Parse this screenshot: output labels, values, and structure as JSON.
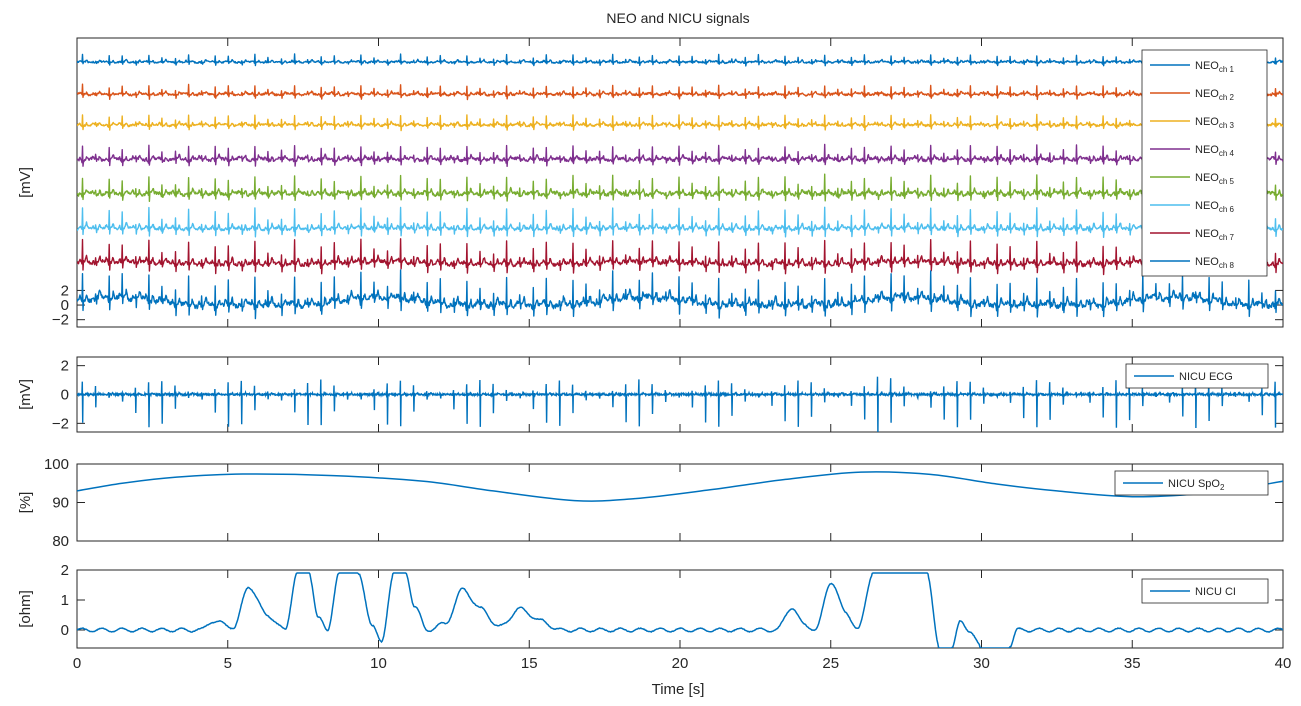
{
  "title": "NEO and NICU signals",
  "xlabel": "Time [s]",
  "line_color": "#0072BD",
  "axis_color": "#262626",
  "chart_data": [
    {
      "id": "neo",
      "type": "line",
      "ylabel": "[mV]",
      "xlim": [
        0,
        40
      ],
      "ylim": [
        -3,
        36.5
      ],
      "yticks": [
        -2,
        0,
        2
      ],
      "yticklabels": [
        "−2",
        "0",
        "2"
      ],
      "xticks": [
        0,
        5,
        10,
        15,
        20,
        25,
        30,
        35,
        40
      ],
      "xticklabels": [],
      "legend_position": "top-right",
      "heart_rate_beats_per_40s": 91,
      "series": [
        {
          "name": "NEO",
          "sub": "ch 1",
          "color": "#0072BD",
          "offset": 33.2,
          "amp": 1.0,
          "noise": 0.2,
          "drift": 0.05
        },
        {
          "name": "NEO",
          "sub": "ch 2",
          "color": "#D95319",
          "offset": 28.8,
          "amp": 1.3,
          "noise": 0.25,
          "drift": 0.05
        },
        {
          "name": "NEO",
          "sub": "ch 3",
          "color": "#EDB120",
          "offset": 24.6,
          "amp": 1.5,
          "noise": 0.25,
          "drift": 0.08
        },
        {
          "name": "NEO",
          "sub": "ch 4",
          "color": "#7E2F8E",
          "offset": 19.9,
          "amp": 2.0,
          "noise": 0.35,
          "drift": 0.1
        },
        {
          "name": "NEO",
          "sub": "ch 5",
          "color": "#77AC30",
          "offset": 15.2,
          "amp": 2.4,
          "noise": 0.4,
          "drift": 0.15
        },
        {
          "name": "NEO",
          "sub": "ch 6",
          "color": "#4DBEEE",
          "offset": 10.4,
          "amp": 2.8,
          "noise": 0.3,
          "drift": 0.12
        },
        {
          "name": "NEO",
          "sub": "ch 7",
          "color": "#A2142F",
          "offset": 5.6,
          "amp": 3.1,
          "noise": 0.4,
          "drift": 0.3
        },
        {
          "name": "NEO",
          "sub": "ch 8",
          "color": "#0072BD",
          "offset": 0.0,
          "amp": 3.8,
          "noise": 0.6,
          "drift": 1.0
        }
      ]
    },
    {
      "id": "ecg",
      "type": "line",
      "ylabel": "[mV]",
      "xlim": [
        0,
        40
      ],
      "ylim": [
        -2.6,
        2.6
      ],
      "yticks": [
        -2,
        0,
        2
      ],
      "yticklabels": [
        "−2",
        "0",
        "2"
      ],
      "xticks": [
        0,
        5,
        10,
        15,
        20,
        25,
        30,
        35,
        40
      ],
      "xticklabels": [],
      "legend_position": "top-right",
      "spike_range_mv": [
        -2.3,
        1.0
      ],
      "series": [
        {
          "name": "NICU ECG",
          "sub": "",
          "color": "#0072BD"
        }
      ]
    },
    {
      "id": "spo2",
      "type": "line",
      "ylabel": "[%]",
      "xlim": [
        0,
        40
      ],
      "ylim": [
        80,
        100
      ],
      "yticks": [
        80,
        90,
        100
      ],
      "yticklabels": [
        "80",
        "90",
        "100"
      ],
      "xticks": [
        0,
        5,
        10,
        15,
        20,
        25,
        30,
        35,
        40
      ],
      "xticklabels": [],
      "legend_position": "top-right",
      "series": [
        {
          "name": "NICU SpO",
          "sub": "2",
          "color": "#0072BD",
          "x": [
            0,
            1.5,
            3.3,
            5.5,
            8.5,
            11.5,
            13.8,
            16.5,
            18.5,
            21,
            23.5,
            26,
            28.3,
            30.5,
            32.5,
            35,
            37.5,
            40
          ],
          "y": [
            93,
            95,
            96.6,
            97.4,
            97,
            95.5,
            93,
            90.5,
            91,
            93.3,
            96,
            97.9,
            97.3,
            94.8,
            93,
            91.5,
            92.5,
            95.5
          ]
        }
      ]
    },
    {
      "id": "ci",
      "type": "line",
      "ylabel": "[ohm]",
      "xlim": [
        0,
        40
      ],
      "ylim": [
        -0.6,
        2
      ],
      "yticks": [
        0,
        1,
        2
      ],
      "yticklabels": [
        "0",
        "1",
        "2"
      ],
      "xticks": [
        0,
        5,
        10,
        15,
        20,
        25,
        30,
        35,
        40
      ],
      "xticklabels": [
        "0",
        "5",
        "10",
        "15",
        "20",
        "25",
        "30",
        "35",
        "40"
      ],
      "legend_position": "top-right",
      "series": [
        {
          "name": "NICU CI",
          "sub": "",
          "color": "#0072BD",
          "x": [
            0,
            4.1,
            4.5,
            5.2,
            5.7,
            6.3,
            6.9,
            7.3,
            7.7,
            8.0,
            8.3,
            8.7,
            9.3,
            9.8,
            10.1,
            10.5,
            10.9,
            11.2,
            11.6,
            12.2,
            12.8,
            13.4,
            14.0,
            14.7,
            15.4,
            16.0,
            23.2,
            23.7,
            24.1,
            24.5,
            25.0,
            25.5,
            25.9,
            26.4,
            26.8,
            28.2,
            28.6,
            29.0,
            29.3,
            29.6,
            30.0,
            30.3,
            30.9,
            31.2,
            31.8,
            40
          ],
          "y": [
            0,
            0,
            0.3,
            0.1,
            1.45,
            0.5,
            0,
            1.9,
            1.9,
            0.4,
            0,
            1.9,
            1.9,
            0.2,
            -0.45,
            1.9,
            1.9,
            0.8,
            0,
            0.2,
            1.35,
            0.7,
            0.1,
            0.7,
            0.3,
            0,
            0,
            0.75,
            0.2,
            0,
            1.6,
            0.6,
            0,
            1.9,
            1.9,
            1.9,
            -0.6,
            -0.6,
            0.25,
            0,
            -0.6,
            -0.6,
            -0.6,
            0,
            0,
            0
          ]
        }
      ]
    }
  ]
}
